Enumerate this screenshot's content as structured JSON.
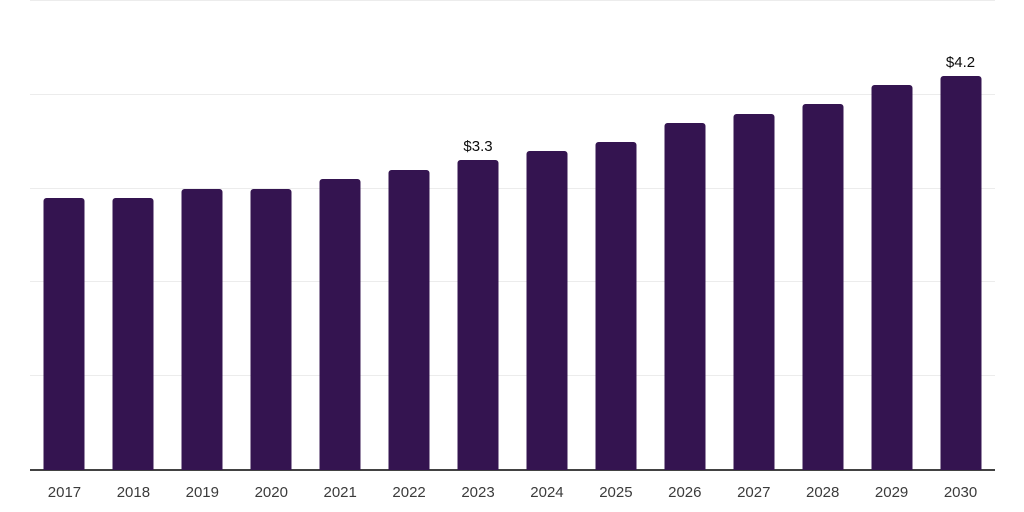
{
  "chart_data": {
    "type": "bar",
    "title": "",
    "xlabel": "",
    "ylabel": "",
    "categories": [
      "2017",
      "2018",
      "2019",
      "2020",
      "2021",
      "2022",
      "2023",
      "2024",
      "2025",
      "2026",
      "2027",
      "2028",
      "2029",
      "2030"
    ],
    "values": [
      2.9,
      2.9,
      3.0,
      3.0,
      3.1,
      3.2,
      3.3,
      3.4,
      3.5,
      3.7,
      3.8,
      3.9,
      4.1,
      4.2
    ],
    "value_unit": "USD billions (implied by $ labels)",
    "data_labels": [
      {
        "category": "2023",
        "text": "$3.3"
      },
      {
        "category": "2030",
        "text": "$4.2"
      }
    ],
    "ylim": [
      0,
      5
    ],
    "ytick_step": 1,
    "grid": true,
    "legend": false,
    "y_axis_labels_visible": false,
    "colors": {
      "bar": "#341450",
      "gridline": "#ececec",
      "axis_line": "#424242",
      "tick_label": "#3b3b3b",
      "data_label": "#0c0c0c",
      "background": "#ffffff"
    }
  }
}
